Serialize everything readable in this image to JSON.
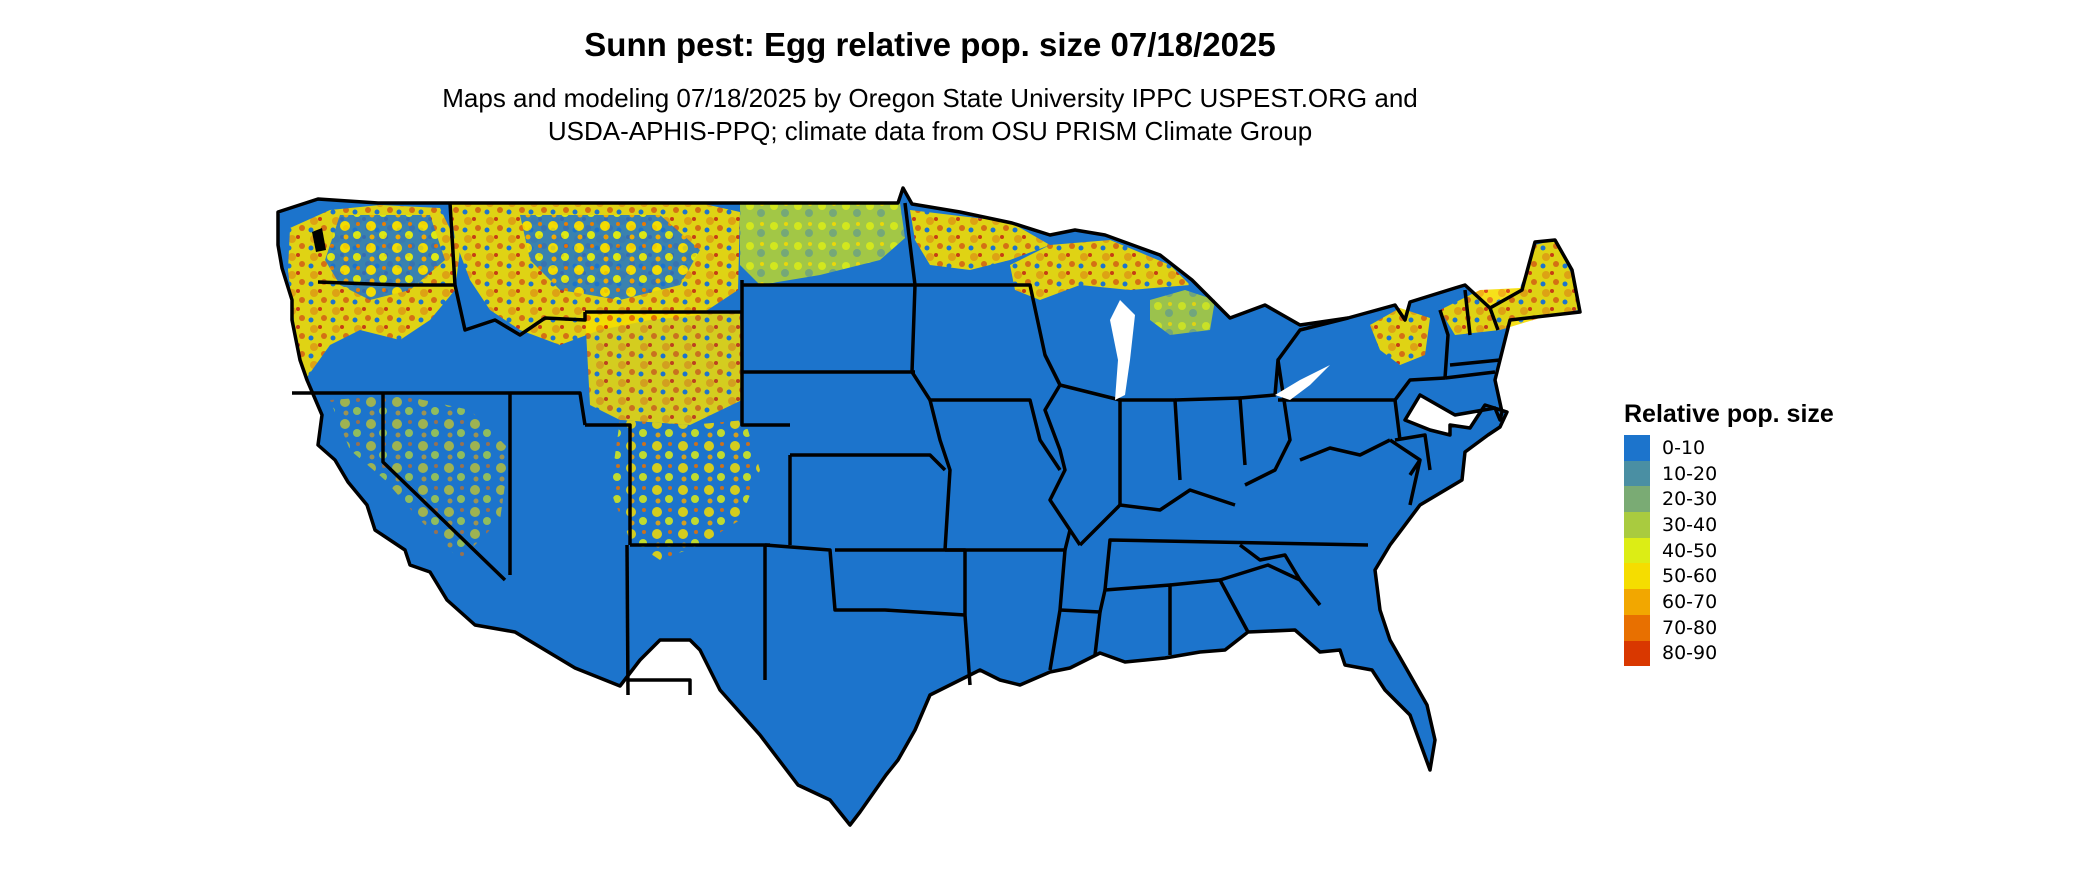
{
  "title": "Sunn pest: Egg relative pop. size 07/18/2025",
  "subtitle_line1": "Maps and modeling 07/18/2025 by Oregon State University IPPC USPEST.ORG and",
  "subtitle_line2": "USDA-APHIS-PPQ; climate data from OSU PRISM Climate Group",
  "legend": {
    "title": "Relative pop. size",
    "items": [
      {
        "label": "0-10",
        "color": "#1c74cc"
      },
      {
        "label": "10-20",
        "color": "#4a8fa3"
      },
      {
        "label": "20-30",
        "color": "#7aab74"
      },
      {
        "label": "30-40",
        "color": "#a9cb3f"
      },
      {
        "label": "40-50",
        "color": "#dced15"
      },
      {
        "label": "50-60",
        "color": "#f5dd00"
      },
      {
        "label": "60-70",
        "color": "#f2a700"
      },
      {
        "label": "70-80",
        "color": "#e87000"
      },
      {
        "label": "80-90",
        "color": "#d93800"
      }
    ]
  }
}
